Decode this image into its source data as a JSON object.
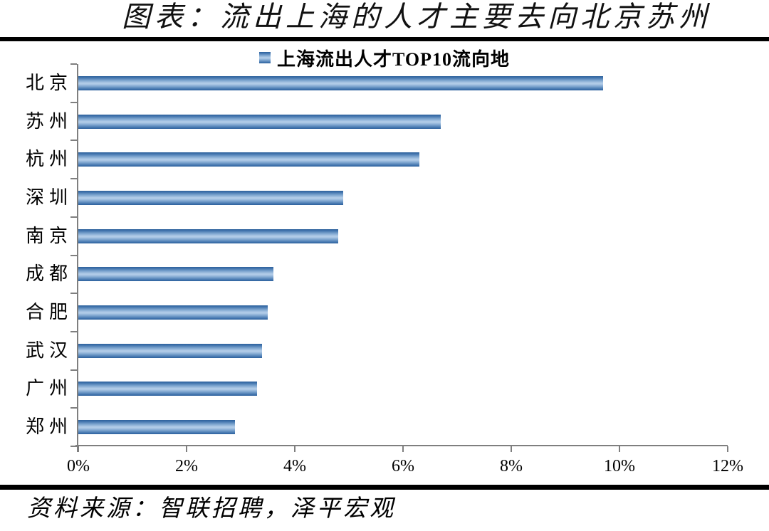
{
  "title": "图表：流出上海的人才主要去向北京苏州",
  "source_note": "资料来源：智联招聘，泽平宏观",
  "colors": {
    "bar_main": "#4f81bd",
    "bar_gradient_edge": "#2d619c",
    "bar_gradient_center": "#b0cbe7",
    "axis": "#7f7f7f",
    "rule": "#000000",
    "text": "#000000"
  },
  "chart_data": {
    "type": "bar",
    "orientation": "horizontal",
    "legend": "上海流出人才TOP10流向地",
    "legend_position": "top-center",
    "categories": [
      "北京",
      "苏州",
      "杭州",
      "深圳",
      "南京",
      "成都",
      "合肥",
      "武汉",
      "广州",
      "郑州"
    ],
    "values": [
      9.7,
      6.7,
      6.3,
      4.9,
      4.8,
      3.6,
      3.5,
      3.4,
      3.3,
      2.9
    ],
    "unit": "%",
    "xlim": [
      0,
      12
    ],
    "x_tick_step": 2,
    "x_tick_labels": [
      "0%",
      "2%",
      "4%",
      "6%",
      "8%",
      "10%",
      "12%"
    ],
    "grid": false
  }
}
